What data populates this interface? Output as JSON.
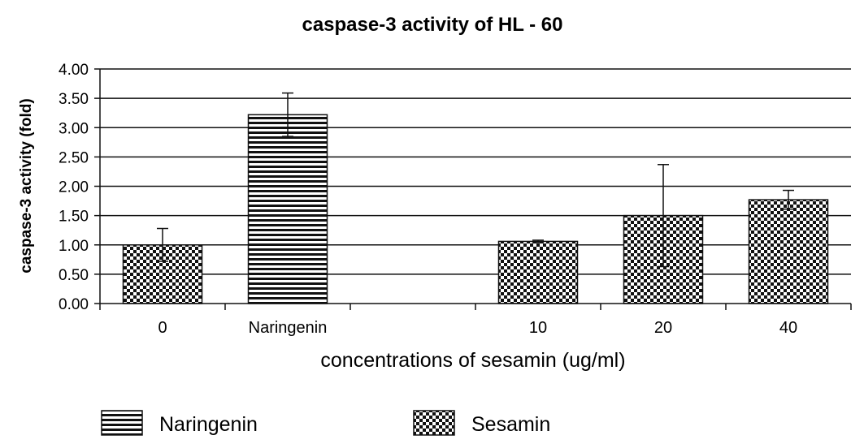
{
  "chart_data": {
    "type": "bar",
    "title": "caspase-3 activity of HL - 60",
    "xlabel": "concentrations of sesamin (ug/ml)",
    "ylabel": "caspase-3 activity (fold)",
    "ylim": [
      0,
      4
    ],
    "yticks": [
      "0.00",
      "0.50",
      "1.00",
      "1.50",
      "2.00",
      "2.50",
      "3.00",
      "3.50",
      "4.00"
    ],
    "grid": true,
    "legend_position": "bottom",
    "categories": [
      "0",
      "Naringenin",
      "",
      "10",
      "20",
      "40"
    ],
    "series": [
      {
        "name": "Naringenin",
        "pattern": "horizontal-stripes",
        "values": [
          null,
          3.22,
          null,
          null,
          null,
          null
        ],
        "errors": [
          null,
          0.37,
          null,
          null,
          null,
          null
        ]
      },
      {
        "name": "Sesamin",
        "pattern": "checkerboard",
        "values": [
          1.0,
          null,
          null,
          1.06,
          1.5,
          1.77
        ],
        "errors": [
          0.28,
          null,
          null,
          0.02,
          0.87,
          0.16
        ]
      }
    ]
  }
}
